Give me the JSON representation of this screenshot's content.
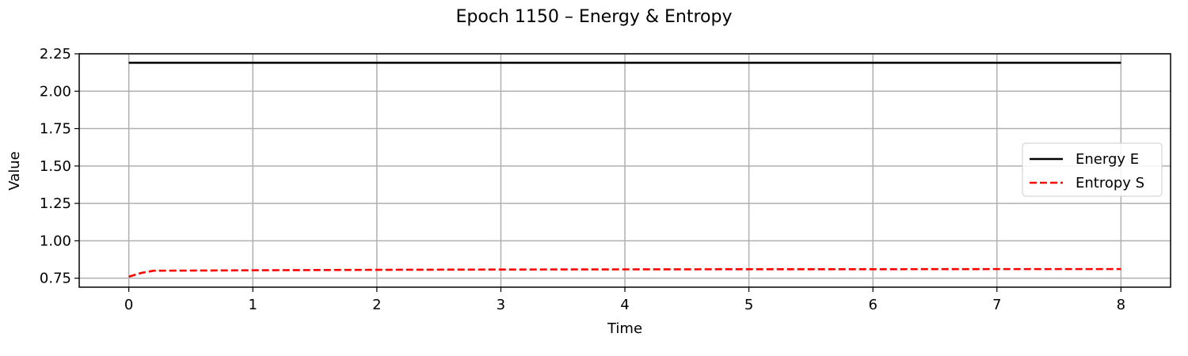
{
  "chart_data": {
    "type": "line",
    "title": "Epoch 1150 – Energy & Entropy",
    "xlabel": "Time",
    "ylabel": "Value",
    "xlim": [
      -0.4,
      8.4
    ],
    "ylim": [
      0.69,
      2.25
    ],
    "x_ticks": [
      0,
      1,
      2,
      3,
      4,
      5,
      6,
      7,
      8
    ],
    "y_ticks": [
      0.75,
      1.0,
      1.25,
      1.5,
      1.75,
      2.0,
      2.25
    ],
    "grid": true,
    "legend_position": "center-right",
    "series": [
      {
        "name": "Energy E",
        "color": "#000000",
        "style": "solid",
        "x": [
          0,
          8
        ],
        "y": [
          2.19,
          2.19
        ]
      },
      {
        "name": "Entropy S",
        "color": "#ff0000",
        "style": "dashed",
        "x": [
          0,
          0.1,
          0.2,
          0.5,
          1,
          2,
          3,
          4,
          5,
          6,
          7,
          8
        ],
        "y": [
          0.76,
          0.785,
          0.8,
          0.801,
          0.803,
          0.806,
          0.808,
          0.809,
          0.81,
          0.81,
          0.811,
          0.811
        ]
      }
    ]
  }
}
